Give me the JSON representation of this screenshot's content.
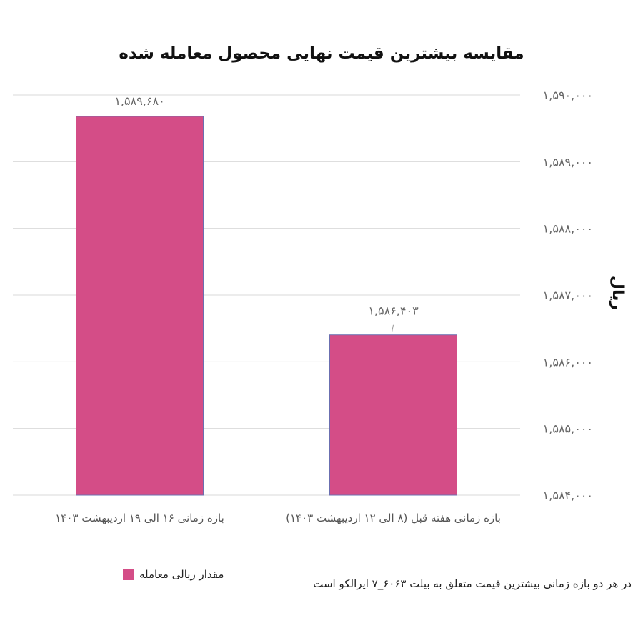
{
  "chart_data": {
    "type": "bar",
    "title": "مقایسه بیشترین قیمت نهایی محصول معامله شده",
    "ylabel": "ریال",
    "xlabel": "",
    "categories": [
      "بازه زمانی ۱۶ الی ۱۹ اردیبهشت ۱۴۰۳",
      "بازه زمانی  هفته قبل (۸ الی ۱۲ اردیبهشت ۱۴۰۳)"
    ],
    "series": [
      {
        "name": "مقدار ریالی معامله",
        "values": [
          1589680,
          1586403
        ],
        "value_labels": [
          "۱,۵۸۹,۶۸۰",
          "۱,۵۸۶,۴۰۳"
        ]
      }
    ],
    "ylim": [
      1584000,
      1590000
    ],
    "y_ticks": [
      1584000,
      1585000,
      1586000,
      1587000,
      1588000,
      1589000,
      1590000
    ],
    "y_tick_labels": [
      "۱,۵۸۴,۰۰۰",
      "۱,۵۸۵,۰۰۰",
      "۱,۵۸۶,۰۰۰",
      "۱,۵۸۷,۰۰۰",
      "۱,۵۸۸,۰۰۰",
      "۱,۵۸۹,۰۰۰",
      "۱,۵۹۰,۰۰۰"
    ],
    "y_axis_side": "right",
    "grid": true,
    "legend": "bottom-left",
    "bar_color": "#d44d87"
  },
  "footnote": "در هر دو بازه زمانی بیشترین قیمت متعلق به بیلت ۶۰۶۳_۷ ایرالکو است"
}
